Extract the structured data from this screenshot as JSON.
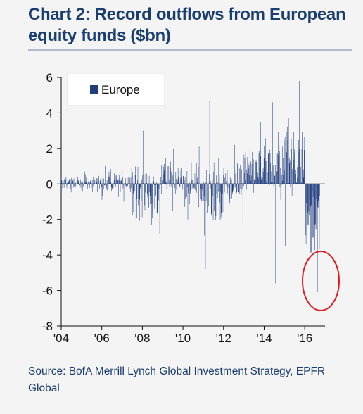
{
  "title": "Chart 2: Record outflows from European equity funds ($bn)",
  "source": "Source: BofA Merrill Lynch Global Investment Strategy, EPFR Global",
  "colors": {
    "series": "#1f3d7f",
    "title": "#1a3e6f",
    "highlight_circle": "#e11b22",
    "axis": "#111111"
  },
  "chart_data": {
    "type": "bar",
    "title": "Chart 2: Record outflows from European equity funds ($bn)",
    "xlabel": "",
    "ylabel": "",
    "frequency": "weekly",
    "x_range": [
      "2004-01",
      "2016-12"
    ],
    "xticks": [
      "'04",
      "'06",
      "'08",
      "'10",
      "'12",
      "'14",
      "'16"
    ],
    "xtick_years": [
      2004,
      2006,
      2008,
      2010,
      2012,
      2014,
      2016
    ],
    "ylim": [
      -8,
      6
    ],
    "yticks": [
      6,
      4,
      2,
      0,
      -2,
      -4,
      -6,
      -8
    ],
    "grid": false,
    "legend": {
      "position": "top-left",
      "entries": [
        "Europe"
      ]
    },
    "series": [
      {
        "name": "Europe",
        "approximate_weekly_profile": [
          {
            "period": "2004-01 to 2005-12",
            "typical_range": [
              -0.5,
              0.6
            ],
            "max": 0.7,
            "min": -0.4
          },
          {
            "period": "2006-01 to 2006-12",
            "typical_range": [
              -0.8,
              0.9
            ],
            "max": 1.0,
            "min": -0.9
          },
          {
            "period": "2007-01 to 2007-06",
            "typical_range": [
              -0.6,
              0.8
            ],
            "max": 0.9,
            "min": -1.0
          },
          {
            "period": "2007-07 to 2008-12",
            "typical_range": [
              -3.0,
              1.5
            ],
            "max": 3.0,
            "min": -5.1
          },
          {
            "period": "2009-01 to 2009-12",
            "typical_range": [
              -0.8,
              1.5
            ],
            "max": 2.0,
            "min": -1.5
          },
          {
            "period": "2010-01 to 2010-12",
            "typical_range": [
              -1.5,
              1.3
            ],
            "max": 2.1,
            "min": -2.0
          },
          {
            "period": "2011-01 to 2011-12",
            "typical_range": [
              -3.0,
              1.6
            ],
            "max": 4.7,
            "min": -4.8
          },
          {
            "period": "2012-01 to 2012-12",
            "typical_range": [
              -1.2,
              1.8
            ],
            "max": 2.2,
            "min": -2.2
          },
          {
            "period": "2013-01 to 2013-12",
            "typical_range": [
              -0.5,
              2.5
            ],
            "max": 3.5,
            "min": -1.0
          },
          {
            "period": "2014-01 to 2014-12",
            "typical_range": [
              -1.0,
              3.0
            ],
            "max": 4.6,
            "min": -5.6
          },
          {
            "period": "2015-01 to 2015-12",
            "typical_range": [
              -1.0,
              4.0
            ],
            "max": 5.8,
            "min": -3.5
          },
          {
            "period": "2016-01 to 2016-09",
            "typical_range": [
              -4.5,
              0.3
            ],
            "max": 0.3,
            "min": -6.1
          }
        ]
      }
    ],
    "annotations": [
      {
        "type": "circle",
        "around": "2016 outflows",
        "x_approx": "2016-09",
        "y_approx": -5.6
      }
    ]
  }
}
